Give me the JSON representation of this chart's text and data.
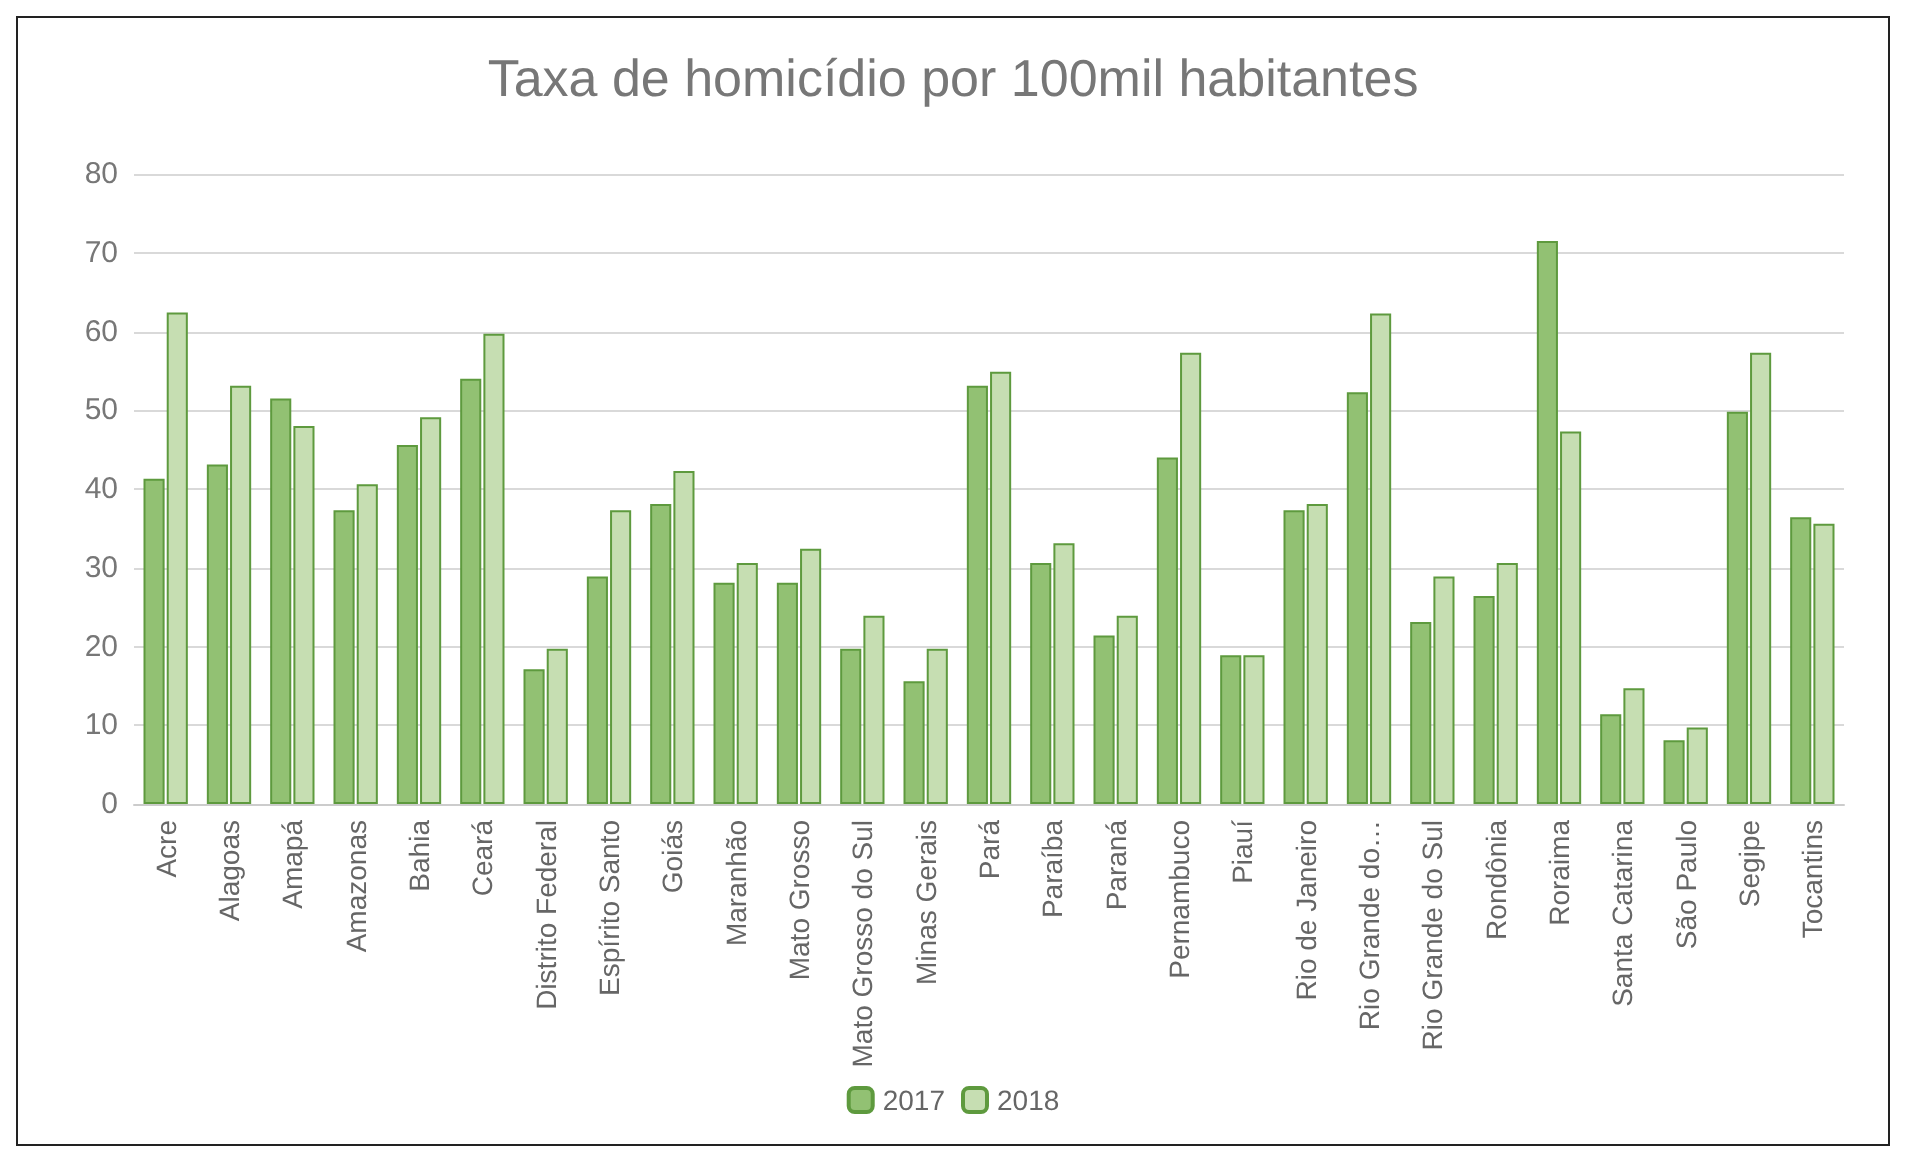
{
  "chart_data": {
    "type": "bar",
    "title": "Taxa de homicídio por 100mil habitantes",
    "categories": [
      "Acre",
      "Alagoas",
      "Amapá",
      "Amazonas",
      "Bahia",
      "Ceará",
      "Distrito Federal",
      "Espírito Santo",
      "Goiás",
      "Maranhão",
      "Mato Grosso",
      "Mato Grosso do Sul",
      "Minas Gerais",
      "Pará",
      "Paraíba",
      "Paraná",
      "Pernambuco",
      "Piauí",
      "Rio de Janeiro",
      "Rio Grande do…",
      "Rio Grande do Sul",
      "Rondônia",
      "Roraima",
      "Santa Catarina",
      "São Paulo",
      "Segipe",
      "Tocantins"
    ],
    "series": [
      {
        "name": "2017",
        "color": "#92c173",
        "values": [
          41.3,
          43.1,
          51.5,
          37.3,
          45.6,
          54,
          17.1,
          28.9,
          38.1,
          28.1,
          28.1,
          19.7,
          15.6,
          53.1,
          30.6,
          21.4,
          44,
          18.9,
          37.3,
          52.3,
          23.1,
          26.4,
          71.5,
          11.4,
          8.1,
          49.8,
          36.4
        ]
      },
      {
        "name": "2018",
        "color": "#c6deb2",
        "values": [
          62.4,
          53.1,
          48,
          40.6,
          49.1,
          59.7,
          19.7,
          37.3,
          42.3,
          30.6,
          32.4,
          23.9,
          19.7,
          54.9,
          33.1,
          23.9,
          57.3,
          18.9,
          38.1,
          62.3,
          28.9,
          30.6,
          47.3,
          14.7,
          9.7,
          57.3,
          35.6
        ]
      }
    ],
    "ylim": [
      0,
      80
    ],
    "yticks": [
      0,
      10,
      20,
      30,
      40,
      50,
      60,
      70,
      80
    ],
    "grid": "y",
    "legend": "bottom"
  }
}
